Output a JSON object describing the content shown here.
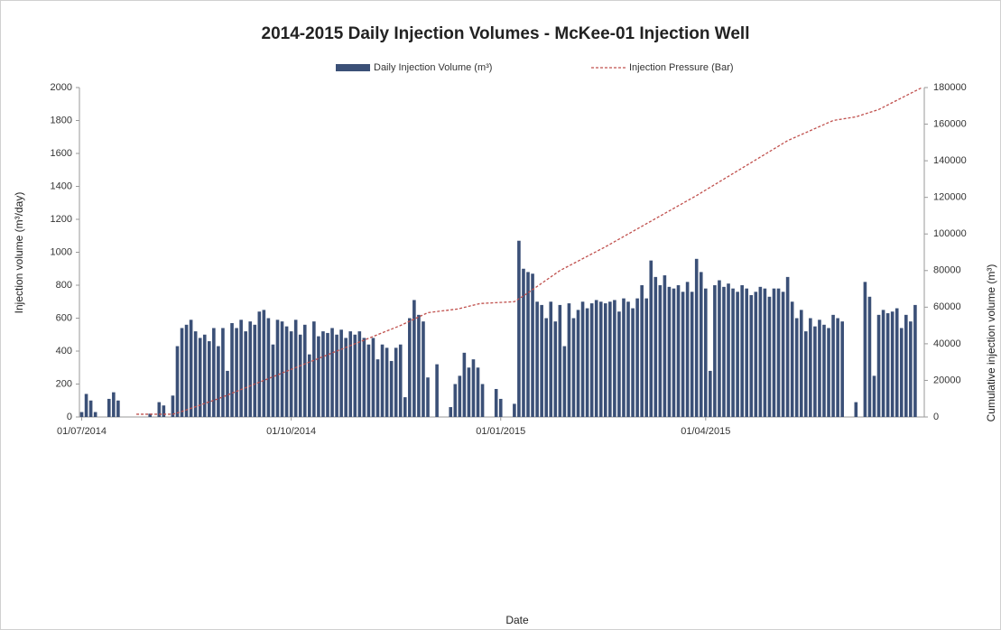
{
  "chart_data": {
    "type": "bar",
    "title": "2014-2015 Daily Injection Volumes - McKee-01 Injection Well",
    "x_label": "Date",
    "y_label": "Injection volume (m³/day)",
    "y2_label": "Cumulative injection volume (m³)",
    "xlim": [
      -1,
      370
    ],
    "xticks": [
      {
        "value": 0,
        "label": "01/07/2014"
      },
      {
        "value": 92,
        "label": "01/10/2014"
      },
      {
        "value": 184,
        "label": "01/01/2015"
      },
      {
        "value": 274,
        "label": "01/04/2015"
      }
    ],
    "ylim": [
      0,
      2000
    ],
    "yticks": [
      0,
      200,
      400,
      600,
      800,
      1000,
      1200,
      1400,
      1600,
      1800,
      2000
    ],
    "y2lim": [
      0,
      180000
    ],
    "y2ticks": [
      0,
      20000,
      40000,
      60000,
      80000,
      100000,
      120000,
      140000,
      160000,
      180000
    ],
    "legend": "top",
    "series": [
      {
        "name": "Daily Injection Volume (m³)",
        "type": "bar",
        "color": "#3b5077",
        "x": [
          0,
          2,
          4,
          6,
          8,
          10,
          12,
          14,
          16,
          18,
          20,
          22,
          24,
          26,
          28,
          30,
          32,
          34,
          36,
          38,
          40,
          42,
          44,
          46,
          48,
          50,
          52,
          54,
          56,
          58,
          60,
          62,
          64,
          66,
          68,
          70,
          72,
          74,
          76,
          78,
          80,
          82,
          84,
          86,
          88,
          90,
          92,
          94,
          96,
          98,
          100,
          102,
          104,
          106,
          108,
          110,
          112,
          114,
          116,
          118,
          120,
          122,
          124,
          126,
          128,
          130,
          132,
          134,
          136,
          138,
          140,
          142,
          144,
          146,
          148,
          150,
          152,
          154,
          156,
          158,
          160,
          162,
          164,
          166,
          168,
          170,
          172,
          174,
          176,
          178,
          180,
          182,
          184,
          186,
          188,
          190,
          192,
          194,
          196,
          198,
          200,
          202,
          204,
          206,
          208,
          210,
          212,
          214,
          216,
          218,
          220,
          222,
          224,
          226,
          228,
          230,
          232,
          234,
          236,
          238,
          240,
          242,
          244,
          246,
          248,
          250,
          252,
          254,
          256,
          258,
          260,
          262,
          264,
          266,
          268,
          270,
          272,
          274,
          276,
          278,
          280,
          282,
          284,
          286,
          288,
          290,
          292,
          294,
          296,
          298,
          300,
          302,
          304,
          306,
          308,
          310,
          312,
          314,
          316,
          318,
          320,
          322,
          324,
          326,
          328,
          330,
          332,
          334,
          336,
          338,
          340,
          342,
          344,
          346,
          348,
          350,
          352,
          354,
          356,
          358,
          360,
          362,
          364,
          366
        ],
        "values": [
          30,
          140,
          100,
          30,
          0,
          0,
          110,
          150,
          100,
          0,
          0,
          0,
          0,
          0,
          0,
          20,
          0,
          90,
          70,
          0,
          130,
          430,
          540,
          560,
          590,
          520,
          480,
          500,
          460,
          540,
          430,
          540,
          280,
          570,
          540,
          590,
          520,
          580,
          560,
          640,
          650,
          600,
          440,
          590,
          580,
          550,
          520,
          590,
          500,
          560,
          380,
          580,
          490,
          520,
          510,
          540,
          500,
          530,
          480,
          520,
          500,
          520,
          480,
          440,
          480,
          350,
          440,
          420,
          340,
          420,
          440,
          120,
          600,
          710,
          620,
          580,
          240,
          0,
          320,
          0,
          0,
          60,
          200,
          250,
          390,
          300,
          350,
          300,
          200,
          0,
          0,
          170,
          110,
          0,
          0,
          80,
          1070,
          900,
          880,
          870,
          700,
          680,
          600,
          700,
          580,
          680,
          430,
          690,
          600,
          650,
          700,
          660,
          690,
          710,
          700,
          690,
          700,
          710,
          640,
          720,
          700,
          660,
          720,
          800,
          720,
          950,
          850,
          800,
          860,
          790,
          780,
          800,
          760,
          820,
          760,
          960,
          880,
          780,
          280,
          800,
          830,
          790,
          810,
          780,
          760,
          800,
          780,
          740,
          760,
          790,
          780,
          730,
          780,
          780,
          760,
          850,
          700,
          600,
          650,
          520,
          600,
          550,
          590,
          560,
          540,
          620,
          600,
          580,
          0,
          0,
          90,
          0,
          820,
          730,
          250,
          620,
          650,
          630,
          640,
          660,
          540,
          620,
          580,
          680
        ]
      },
      {
        "name": "Injection Pressure (Bar)",
        "type": "line",
        "axis": "y2",
        "color": "#c0504d",
        "x": [
          24,
          40,
          44,
          60,
          80,
          100,
          120,
          140,
          152,
          165,
          175,
          190,
          195,
          210,
          230,
          250,
          270,
          290,
          310,
          330,
          340,
          350,
          369
        ],
        "values": [
          1500,
          1500,
          3000,
          10000,
          20000,
          30000,
          40000,
          50000,
          57000,
          59000,
          62000,
          63000,
          67000,
          80000,
          93000,
          107000,
          121000,
          136000,
          151000,
          162000,
          164000,
          168000,
          180000
        ]
      }
    ]
  }
}
